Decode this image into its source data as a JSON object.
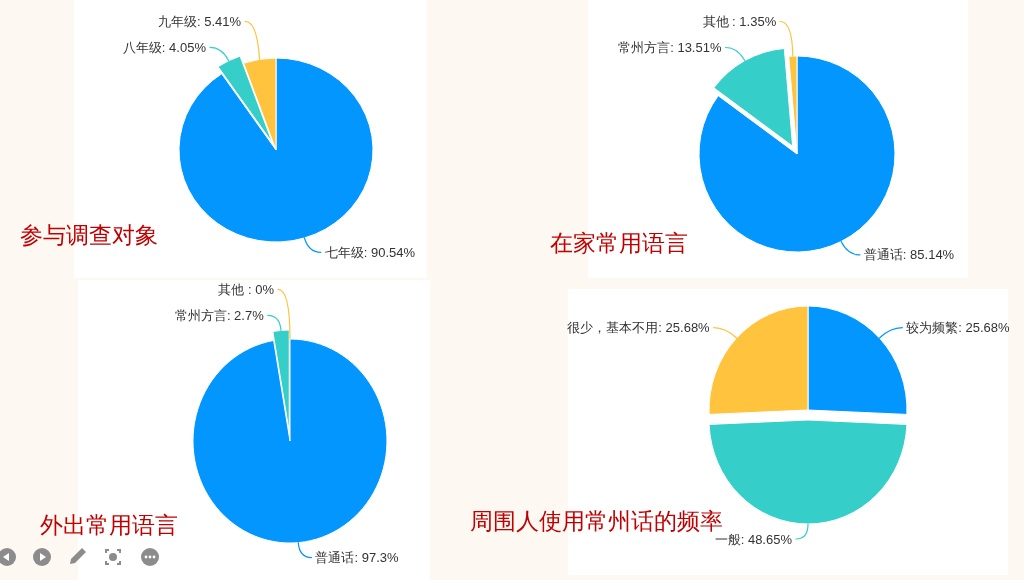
{
  "chart_data": [
    {
      "type": "pie",
      "title": "参与调查对象",
      "categories": [
        "七年级",
        "八年级",
        "九年级"
      ],
      "values": [
        90.54,
        4.05,
        5.41
      ],
      "colors": [
        "#0396ff",
        "#36cec9",
        "#ffc33d"
      ],
      "value_labels": [
        ": 90.54%",
        ": 4.05%",
        ": 5.41%"
      ]
    },
    {
      "type": "pie",
      "title": "在家常用语言",
      "categories": [
        "普通话",
        "常州方言",
        "其他 "
      ],
      "values": [
        85.14,
        13.51,
        1.35
      ],
      "colors": [
        "#0396ff",
        "#36cec9",
        "#ffc33d"
      ],
      "value_labels": [
        ": 85.14%",
        ": 13.51%",
        ": 1.35%"
      ]
    },
    {
      "type": "pie",
      "title": "外出常用语言",
      "categories": [
        "普通话",
        "常州方言",
        "其他 "
      ],
      "values": [
        97.3,
        2.7,
        0
      ],
      "colors": [
        "#0396ff",
        "#36cec9",
        "#ffc33d"
      ],
      "value_labels": [
        ": 97.3%",
        ": 2.7%",
        ": 0%"
      ]
    },
    {
      "type": "pie",
      "title": "周围人使用常州话的频率",
      "categories": [
        "较为频繁",
        "一般",
        "很少，基本不用"
      ],
      "values": [
        25.68,
        48.65,
        25.68
      ],
      "colors": [
        "#0396ff",
        "#36cec9",
        "#ffc33d"
      ],
      "value_labels": [
        ": 25.68%",
        ": 48.65%",
        ": 25.68%"
      ]
    }
  ]
}
